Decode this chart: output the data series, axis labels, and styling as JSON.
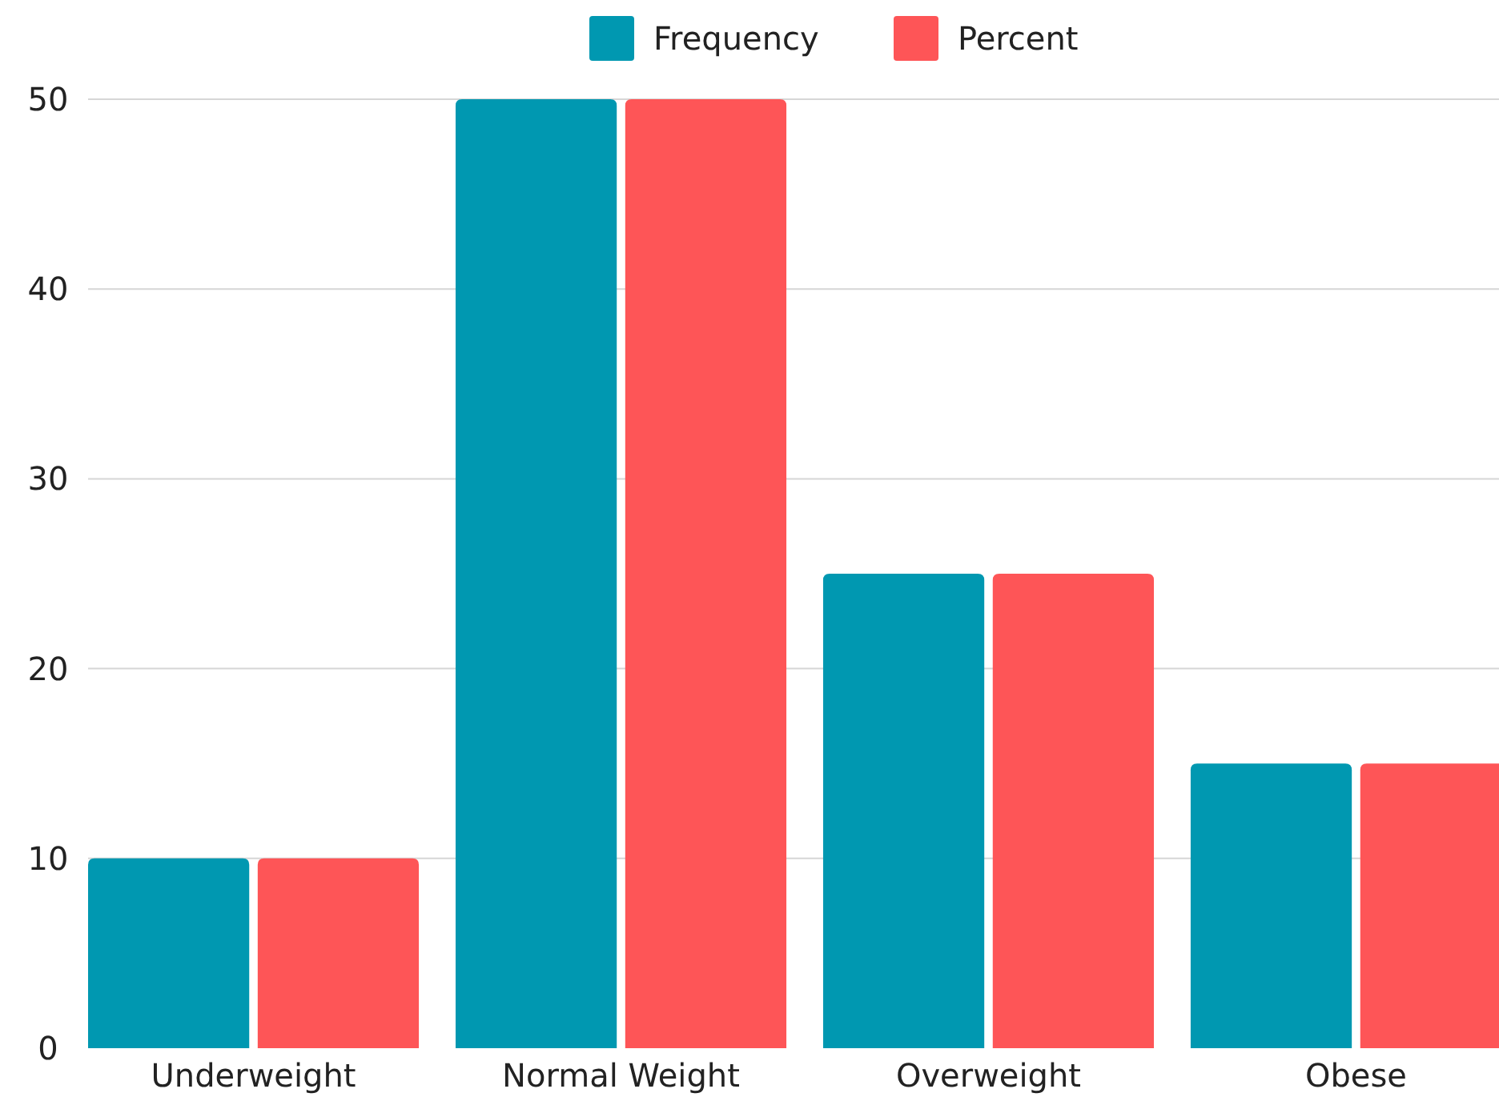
{
  "chart_data": {
    "type": "bar",
    "categories": [
      "Underweight",
      "Normal Weight",
      "Overweight",
      "Obese"
    ],
    "series": [
      {
        "name": "Frequency",
        "color": "#0098b1",
        "values": [
          10,
          50,
          25,
          15
        ]
      },
      {
        "name": "Percent",
        "color": "#fe5557",
        "values": [
          10,
          50,
          25,
          15
        ]
      }
    ],
    "ylim": [
      0,
      50
    ],
    "yticks": [
      0,
      10,
      20,
      30,
      40,
      50
    ],
    "grid": "y",
    "legend": "top"
  }
}
